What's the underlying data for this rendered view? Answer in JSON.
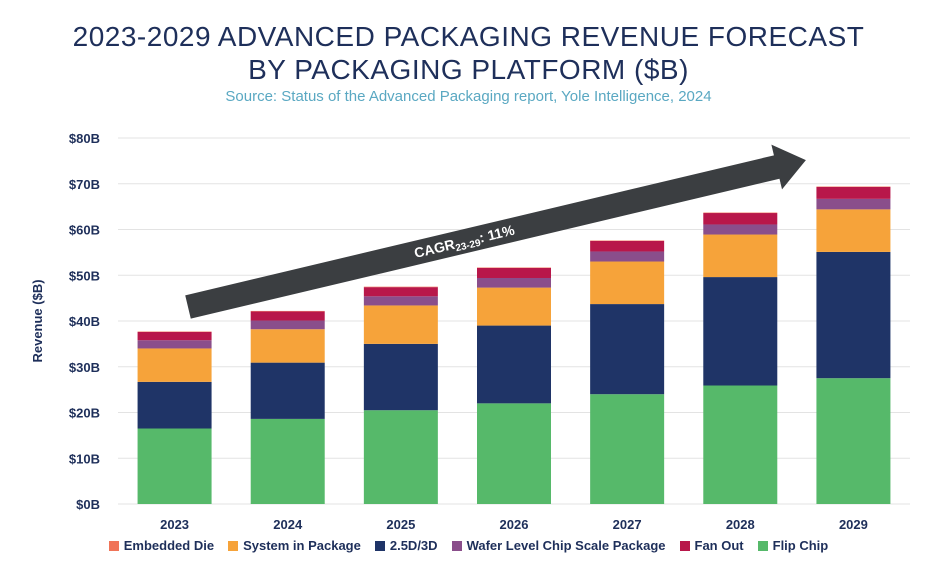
{
  "title_line_1": "2023-2029 ADVANCED PACKAGING REVENUE FORECAST",
  "title_line_2": "BY PACKAGING PLATFORM ($B)",
  "subtitle": "Source: Status of the Advanced Packaging report, Yole Intelligence, 2024",
  "annotation": {
    "prefix": "CAGR",
    "sub": "23-29",
    "suffix": ": 11%"
  },
  "chart_data": {
    "type": "bar",
    "stacked": true,
    "title": "2023-2029 ADVANCED PACKAGING REVENUE FORECAST BY PACKAGING PLATFORM ($B)",
    "subtitle": "Source: Status of the Advanced Packaging report, Yole Intelligence, 2024",
    "xlabel": "",
    "ylabel": "Revenue ($B)",
    "ylim": [
      0,
      80
    ],
    "yticks": [
      0,
      10,
      20,
      30,
      40,
      50,
      60,
      70,
      80
    ],
    "ytick_labels": [
      "$0B",
      "$10B",
      "$20B",
      "$30B",
      "$40B",
      "$50B",
      "$60B",
      "$70B",
      "$80B"
    ],
    "grid": true,
    "legend_position": "bottom",
    "categories": [
      "2023",
      "2024",
      "2025",
      "2026",
      "2027",
      "2028",
      "2029"
    ],
    "series": [
      {
        "name": "Flip Chip",
        "color": "#56b96a",
        "values": [
          16.5,
          18.6,
          20.5,
          22.0,
          24.0,
          25.9,
          27.5
        ]
      },
      {
        "name": "2.5D/3D",
        "color": "#1f3467",
        "values": [
          10.2,
          12.3,
          14.5,
          17.0,
          19.7,
          23.7,
          27.6
        ]
      },
      {
        "name": "System in Package",
        "color": "#f6a33a",
        "values": [
          7.3,
          7.3,
          8.4,
          8.3,
          9.3,
          9.3,
          9.3
        ]
      },
      {
        "name": "Wafer Level Chip Scale Package",
        "color": "#8a4e8b",
        "values": [
          1.8,
          1.9,
          2.0,
          2.1,
          2.2,
          2.2,
          2.3
        ]
      },
      {
        "name": "Fan Out",
        "color": "#b8174a",
        "values": [
          1.8,
          2.0,
          2.0,
          2.2,
          2.3,
          2.5,
          2.6
        ]
      },
      {
        "name": "Embedded Die",
        "color": "#f07459",
        "values": [
          0.1,
          0.1,
          0.1,
          0.1,
          0.1,
          0.1,
          0.1
        ]
      }
    ],
    "legend_order": [
      "Embedded Die",
      "System in Package",
      "2.5D/3D",
      "Wafer Level Chip Scale Package",
      "Fan Out",
      "Flip Chip"
    ],
    "annotations": [
      "CAGR23-29: 11%"
    ]
  },
  "colors": {
    "title": "#1e2f5a",
    "subtitle": "#5aa8c2",
    "arrow": "#3b3e41",
    "grid": "#e3e3e3"
  }
}
